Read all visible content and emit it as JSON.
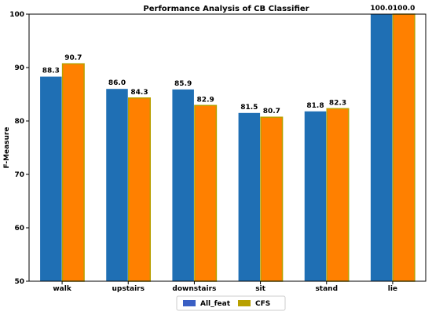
{
  "chart_data": {
    "type": "bar",
    "title": "Performance Analysis of CB  Classifier",
    "xlabel": "",
    "ylabel": "F-Measure",
    "categories": [
      "walk",
      "upstairs",
      "downstairs",
      "sit",
      "stand",
      "lie"
    ],
    "series": [
      {
        "name": "All_feat",
        "values": [
          88.3,
          86.0,
          85.9,
          81.5,
          81.8,
          100.0
        ],
        "color": "#1f6fb4",
        "legend_color": "#3a5fc4"
      },
      {
        "name": "CFS",
        "values": [
          90.7,
          84.3,
          82.9,
          80.7,
          82.3,
          100.0
        ],
        "color": "#ff8000",
        "edge_color": "#b8a000",
        "legend_color": "#b8a000"
      }
    ],
    "data_labels": [
      [
        "88.3",
        "86.0",
        "85.9",
        "81.5",
        "81.8",
        "100.0"
      ],
      [
        "90.7",
        "84.3",
        "82.9",
        "80.7",
        "82.3",
        "100.0"
      ]
    ],
    "ylim": [
      50,
      100
    ],
    "yticks": [
      "50",
      "60",
      "70",
      "80",
      "90",
      "100"
    ],
    "grid": false,
    "legend_position": "bottom-center"
  }
}
